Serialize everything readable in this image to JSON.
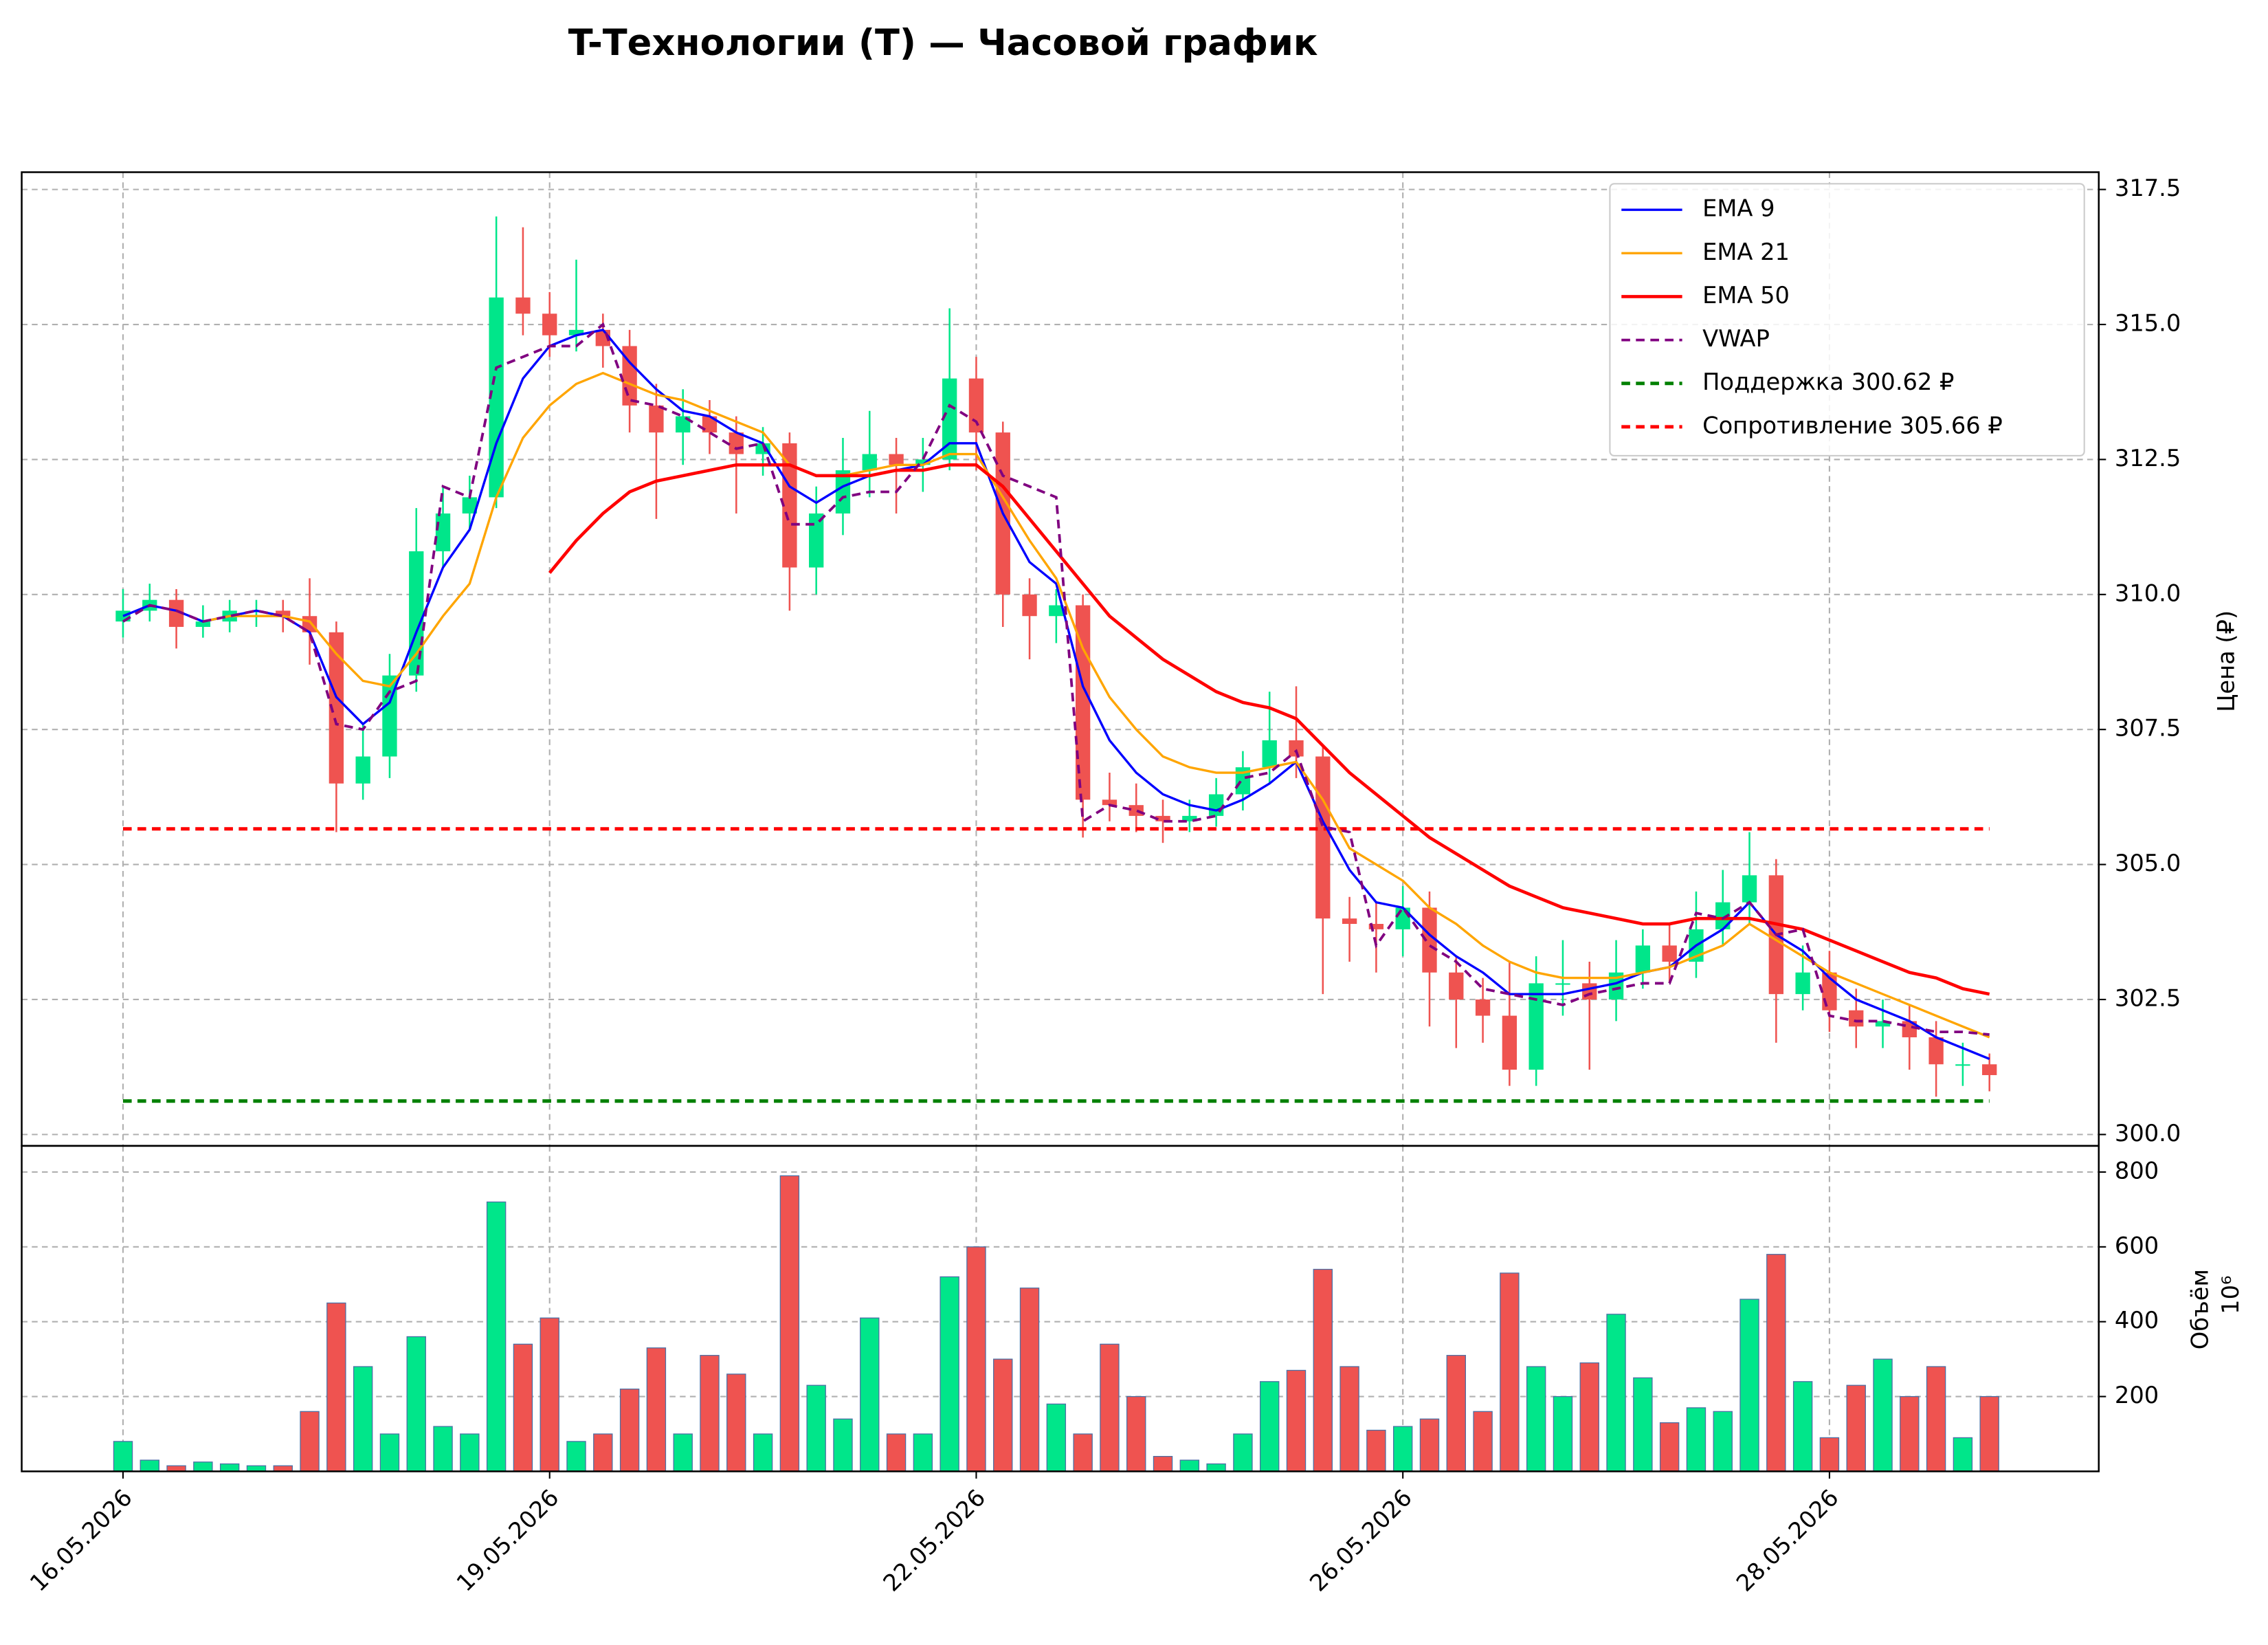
{
  "chart_data": {
    "type": "candlestick",
    "title": "T-Технологии (T) — Часовой график",
    "ylabel": "Цена (₽)",
    "xlim": [
      -3.8,
      74.1
    ],
    "xticks": [
      {
        "value": 0,
        "label": "16.05.2026"
      },
      {
        "value": 16,
        "label": "19.05.2026"
      },
      {
        "value": 32,
        "label": "22.05.2026"
      },
      {
        "value": 48,
        "label": "26.05.2026"
      },
      {
        "value": 64,
        "label": "28.05.2026"
      }
    ],
    "ylim": [
      299.79,
      317.82
    ],
    "yticks": [
      {
        "value": 300,
        "label": "300.0"
      },
      302.5,
      {
        "value": 305,
        "label": "305.0"
      },
      307.5,
      {
        "value": 310,
        "label": "310.0"
      },
      312.5,
      {
        "value": 315,
        "label": "315.0"
      },
      317.5
    ],
    "grid": true,
    "legend": "upper right",
    "up_color": "#00e68a",
    "down_color": "#ef5350",
    "open": [
      309.5,
      309.7,
      309.9,
      309.4,
      309.5,
      309.7,
      309.7,
      309.6,
      309.3,
      306.5,
      307.0,
      308.5,
      310.8,
      311.5,
      311.8,
      315.5,
      315.2,
      314.8,
      314.9,
      314.6,
      313.5,
      313.0,
      313.3,
      313.0,
      312.6,
      312.8,
      310.5,
      311.5,
      312.3,
      312.6,
      312.4,
      312.5,
      314.0,
      313.0,
      310.0,
      309.6,
      309.8,
      306.2,
      306.1,
      305.9,
      305.8,
      305.9,
      306.3,
      306.8,
      307.3,
      307.0,
      304.0,
      303.9,
      303.8,
      304.2,
      303.0,
      302.5,
      302.2,
      301.2,
      302.8,
      302.8,
      302.5,
      303.0,
      303.5,
      303.2,
      303.8,
      304.3,
      304.8,
      302.6,
      303.0,
      302.3,
      302.0,
      302.1,
      301.8,
      301.3,
      301.3
    ],
    "high": [
      310.1,
      310.2,
      310.1,
      309.8,
      309.9,
      309.9,
      309.9,
      310.3,
      309.5,
      307.6,
      308.9,
      311.6,
      312.0,
      312.2,
      317.0,
      316.8,
      315.6,
      316.2,
      315.2,
      314.9,
      313.9,
      313.8,
      313.6,
      313.3,
      313.1,
      313.0,
      312.0,
      312.9,
      313.4,
      312.9,
      312.9,
      315.3,
      314.4,
      313.2,
      310.3,
      310.1,
      310.0,
      306.7,
      306.5,
      306.2,
      306.2,
      306.6,
      307.1,
      308.2,
      308.3,
      307.2,
      304.4,
      304.3,
      304.6,
      304.5,
      303.3,
      302.9,
      303.2,
      303.3,
      303.6,
      303.2,
      303.6,
      303.8,
      303.9,
      304.5,
      304.9,
      305.6,
      305.1,
      303.5,
      303.4,
      302.7,
      302.5,
      302.4,
      302.1,
      301.7,
      301.5
    ],
    "low": [
      309.2,
      309.5,
      309.0,
      309.2,
      309.3,
      309.4,
      309.3,
      308.7,
      305.6,
      306.2,
      306.6,
      308.2,
      310.5,
      311.2,
      311.6,
      314.8,
      314.4,
      314.5,
      314.2,
      313.0,
      311.4,
      312.4,
      312.6,
      311.5,
      312.2,
      309.7,
      310.0,
      311.1,
      311.8,
      311.5,
      311.9,
      312.3,
      312.3,
      309.4,
      308.8,
      309.1,
      305.5,
      305.8,
      305.6,
      305.4,
      305.6,
      305.7,
      306.0,
      306.5,
      306.6,
      302.6,
      303.2,
      303.0,
      303.3,
      302.0,
      301.6,
      301.7,
      300.9,
      300.9,
      302.2,
      301.2,
      302.1,
      302.7,
      302.8,
      302.9,
      303.5,
      303.9,
      301.7,
      302.3,
      301.9,
      301.6,
      301.6,
      301.2,
      300.7,
      300.9,
      300.8
    ],
    "close": [
      309.7,
      309.9,
      309.4,
      309.5,
      309.7,
      309.7,
      309.6,
      309.3,
      306.5,
      307.0,
      308.5,
      310.8,
      311.5,
      311.8,
      315.5,
      315.2,
      314.8,
      314.9,
      314.6,
      313.5,
      313.0,
      313.3,
      313.0,
      312.6,
      312.8,
      310.5,
      311.5,
      312.3,
      312.6,
      312.4,
      312.5,
      314.0,
      313.0,
      310.0,
      309.6,
      309.8,
      306.2,
      306.1,
      305.9,
      305.8,
      305.9,
      306.3,
      306.8,
      307.3,
      307.0,
      304.0,
      303.9,
      303.8,
      304.2,
      303.0,
      302.5,
      302.2,
      301.2,
      302.8,
      302.8,
      302.5,
      303.0,
      303.5,
      303.2,
      303.8,
      304.3,
      304.8,
      302.6,
      303.0,
      302.3,
      302.0,
      302.1,
      301.8,
      301.3,
      301.3,
      301.1
    ],
    "series": [
      {
        "name": "EMA 9",
        "color": "#0000ff",
        "linewidth": 1.6,
        "style": "solid",
        "values": [
          309.6,
          309.8,
          309.7,
          309.5,
          309.6,
          309.7,
          309.6,
          309.3,
          308.1,
          307.6,
          308.0,
          309.3,
          310.5,
          311.2,
          312.8,
          314.0,
          314.6,
          314.8,
          314.9,
          314.3,
          313.8,
          313.4,
          313.3,
          313.0,
          312.8,
          312.0,
          311.7,
          312.0,
          312.2,
          312.3,
          312.4,
          312.8,
          312.8,
          311.5,
          310.6,
          310.2,
          308.3,
          307.3,
          306.7,
          306.3,
          306.1,
          306.0,
          306.2,
          306.5,
          306.9,
          305.8,
          304.9,
          304.3,
          304.2,
          303.7,
          303.3,
          303.0,
          302.6,
          302.6,
          302.6,
          302.7,
          302.8,
          303.0,
          303.1,
          303.5,
          303.8,
          304.3,
          303.7,
          303.4,
          302.9,
          302.5,
          302.3,
          302.1,
          301.8,
          301.6,
          301.4
        ]
      },
      {
        "name": "EMA 21",
        "color": "#ffa500",
        "linewidth": 1.6,
        "style": "solid",
        "values": [
          null,
          null,
          null,
          309.5,
          309.6,
          309.6,
          309.6,
          309.5,
          308.9,
          308.4,
          308.3,
          308.9,
          309.6,
          310.2,
          311.8,
          312.9,
          313.5,
          313.9,
          314.1,
          313.9,
          313.7,
          313.6,
          313.4,
          313.2,
          313.0,
          312.4,
          312.2,
          312.2,
          312.3,
          312.4,
          312.4,
          312.6,
          312.6,
          311.8,
          311.0,
          310.3,
          309.0,
          308.1,
          307.5,
          307.0,
          306.8,
          306.7,
          306.7,
          306.8,
          306.9,
          306.2,
          305.3,
          305.0,
          304.7,
          304.2,
          303.9,
          303.5,
          303.2,
          303.0,
          302.9,
          302.9,
          302.9,
          303.0,
          303.1,
          303.3,
          303.5,
          303.9,
          303.6,
          303.3,
          303.0,
          302.8,
          302.6,
          302.4,
          302.2,
          302.0,
          301.8
        ]
      },
      {
        "name": "EMA 50",
        "color": "#ff0000",
        "linewidth": 2.2,
        "style": "solid",
        "values": [
          null,
          null,
          null,
          null,
          null,
          null,
          null,
          null,
          null,
          null,
          null,
          null,
          null,
          null,
          null,
          null,
          310.4,
          311.0,
          311.5,
          311.9,
          312.1,
          312.2,
          312.3,
          312.4,
          312.4,
          312.4,
          312.2,
          312.2,
          312.2,
          312.3,
          312.3,
          312.4,
          312.4,
          312.0,
          311.4,
          310.8,
          310.2,
          309.6,
          309.2,
          308.8,
          308.5,
          308.2,
          308.0,
          307.9,
          307.7,
          307.2,
          306.7,
          306.3,
          305.9,
          305.5,
          305.2,
          304.9,
          304.6,
          304.4,
          304.2,
          304.1,
          304.0,
          303.9,
          303.9,
          304.0,
          304.0,
          304.0,
          303.9,
          303.8,
          303.6,
          303.4,
          303.2,
          303.0,
          302.9,
          302.7,
          302.6
        ]
      },
      {
        "name": "VWAP",
        "color": "#800080",
        "linewidth": 1.8,
        "style": "dashed",
        "values": [
          309.5,
          309.8,
          309.7,
          309.5,
          309.6,
          309.7,
          309.6,
          309.3,
          307.6,
          307.5,
          308.2,
          308.4,
          312.0,
          311.8,
          314.2,
          314.4,
          314.6,
          314.6,
          315.0,
          313.6,
          313.5,
          313.3,
          313.0,
          312.7,
          312.8,
          311.3,
          311.3,
          311.8,
          311.9,
          311.9,
          312.5,
          313.5,
          313.2,
          312.2,
          312.0,
          311.8,
          305.8,
          306.1,
          306.0,
          305.8,
          305.8,
          305.9,
          306.6,
          306.7,
          307.1,
          305.7,
          305.6,
          303.5,
          304.2,
          303.5,
          303.2,
          302.7,
          302.6,
          302.5,
          302.4,
          302.6,
          302.7,
          302.8,
          302.8,
          304.1,
          304.0,
          304.3,
          303.7,
          303.8,
          302.2,
          302.1,
          302.1,
          302.0,
          301.9,
          301.9,
          301.85
        ]
      }
    ],
    "levels": [
      {
        "name": "Поддержка 300.62 ₽",
        "value": 300.62,
        "color": "#008000",
        "style": "dashed"
      },
      {
        "name": "Сопротивление 305.66 ₽",
        "value": 305.66,
        "color": "#ff0000",
        "style": "dashed"
      }
    ],
    "volume": {
      "ylabel": "Объём",
      "offset": "10⁶",
      "ylim": [
        0,
        870
      ],
      "yticks": [
        200,
        400,
        600,
        800
      ],
      "values": [
        80,
        30,
        15,
        25,
        20,
        15,
        15,
        160,
        450,
        280,
        100,
        360,
        120,
        100,
        720,
        340,
        410,
        80,
        100,
        220,
        330,
        100,
        310,
        260,
        100,
        790,
        230,
        140,
        410,
        100,
        100,
        520,
        600,
        300,
        490,
        180,
        100,
        340,
        200,
        40,
        30,
        20,
        100,
        240,
        270,
        540,
        280,
        110,
        120,
        140,
        310,
        160,
        530,
        280,
        200,
        290,
        420,
        250,
        130,
        170,
        160,
        460,
        580,
        240,
        90,
        230,
        300,
        200,
        280,
        90,
        200
      ]
    }
  }
}
